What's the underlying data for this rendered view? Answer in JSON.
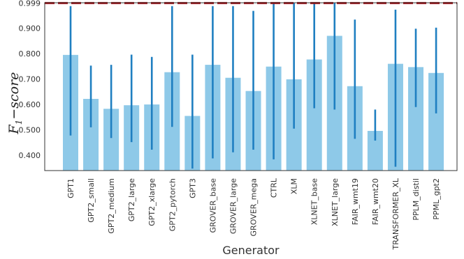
{
  "chart_data": {
    "type": "bar",
    "xlabel": "Generator",
    "ylabel_main": "F",
    "ylabel_sub": "1",
    "ylabel_rest": "−score",
    "ylim": [
      0.34,
      1.0
    ],
    "yticks": [
      "0.400",
      "0.500",
      "0.600",
      "0.700",
      "0.800",
      "0.900",
      "0.999"
    ],
    "ytick_values": [
      0.4,
      0.5,
      0.6,
      0.7,
      0.8,
      0.9,
      0.999
    ],
    "reference_line": 0.999,
    "grid": false,
    "categories": [
      "GPT1",
      "GPT2_small",
      "GPT2_medium",
      "GPT2_large",
      "GPT2_xlarge",
      "GPT2_pytorch",
      "GPT3",
      "GROVER_base",
      "GROVER_large",
      "GROVER_mega",
      "CTRL",
      "XLM",
      "XLNET_base",
      "XLNET_large",
      "FAIR_wmt19",
      "FAIR_wmt20",
      "TRANSFORMER_XL",
      "PPLM_distil",
      "PPML_gpt2"
    ],
    "values": [
      0.795,
      0.622,
      0.583,
      0.597,
      0.6,
      0.727,
      0.555,
      0.756,
      0.705,
      0.653,
      0.749,
      0.699,
      0.777,
      0.87,
      0.672,
      0.496,
      0.76,
      0.747,
      0.724
    ],
    "error_low": [
      0.478,
      0.51,
      0.468,
      0.452,
      0.422,
      0.512,
      0.348,
      0.388,
      0.412,
      0.422,
      0.384,
      0.505,
      0.585,
      0.58,
      0.465,
      0.458,
      0.355,
      0.59,
      0.565
    ],
    "error_high": [
      0.987,
      0.753,
      0.756,
      0.796,
      0.787,
      0.987,
      0.796,
      0.987,
      0.987,
      0.968,
      0.999,
      0.999,
      0.999,
      0.999,
      0.934,
      0.58,
      0.973,
      0.898,
      0.902
    ],
    "colors": {
      "bar": "#8ec9e8",
      "errorbar": "#1f7fc1",
      "reference": "#a50f15",
      "frame": "#333333"
    }
  }
}
